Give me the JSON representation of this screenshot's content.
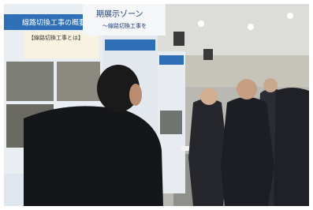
{
  "signs": {
    "panel_title": "線路切換工事の概要",
    "panel_subtitle": "【線路切換工事とは】",
    "banner_title": "期展示ゾーン",
    "banner_subtitle": "～線路切換工事を"
  }
}
